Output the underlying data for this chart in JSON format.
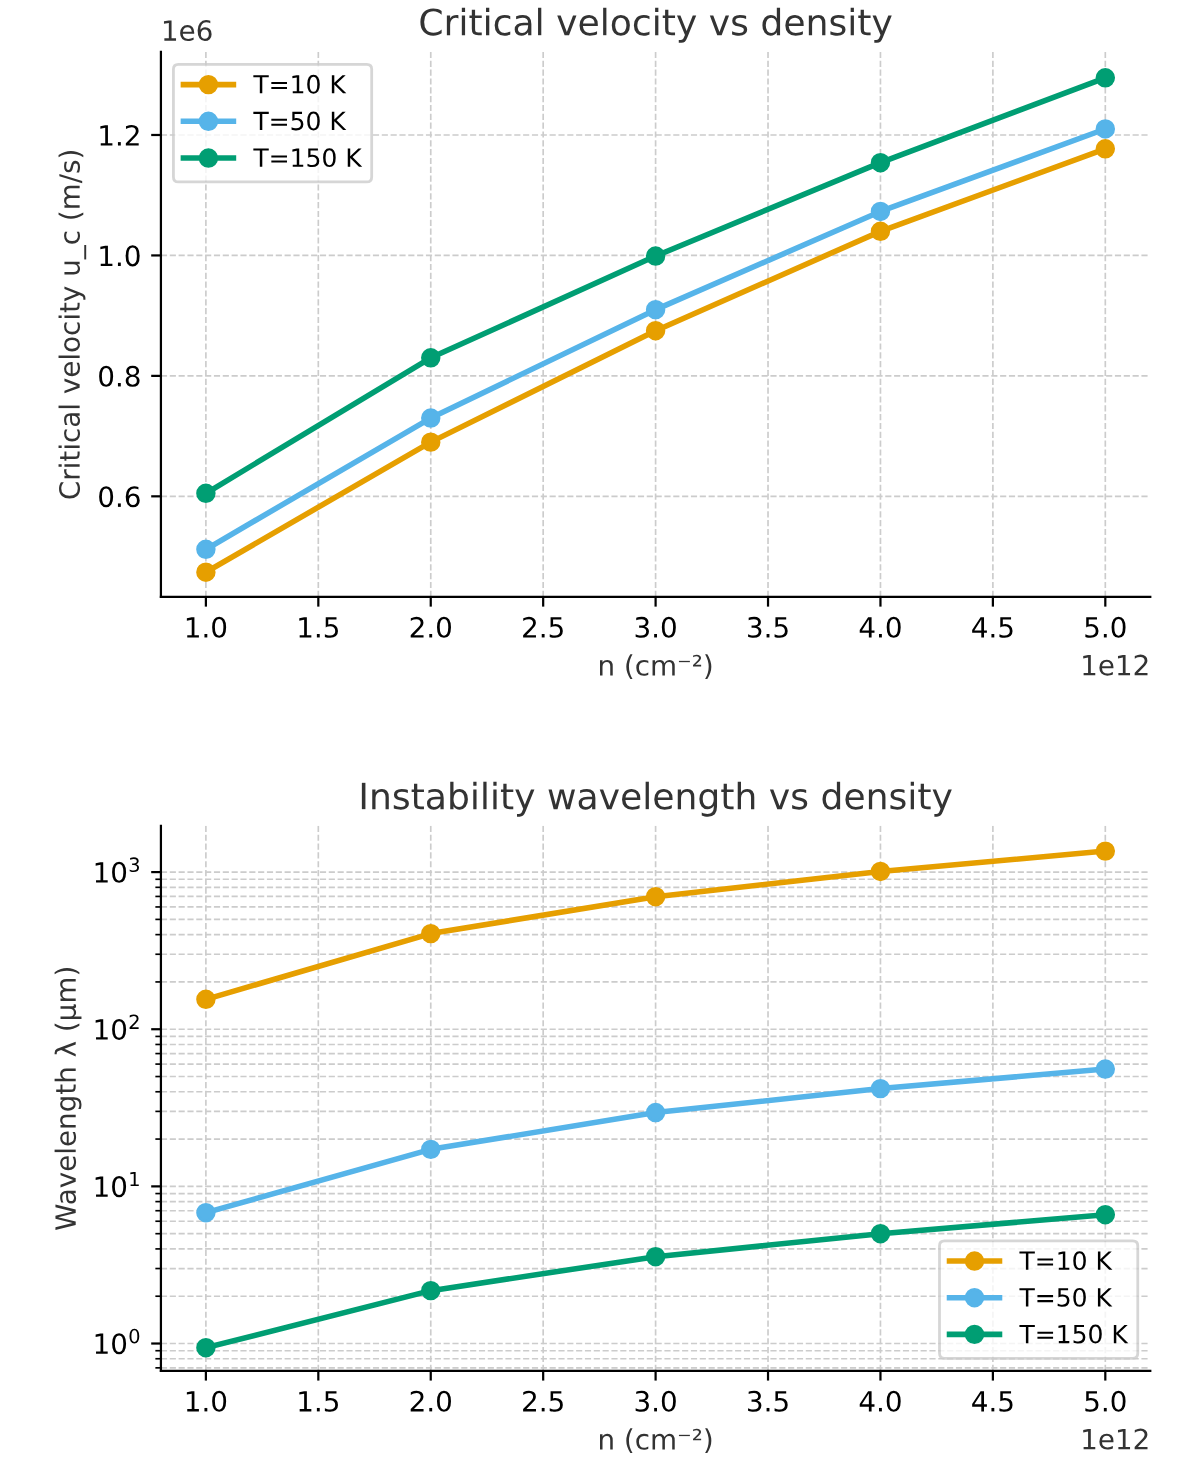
{
  "chart_data": [
    {
      "type": "line",
      "title": "Critical velocity vs density",
      "xlabel": "n (cm⁻²)",
      "ylabel": "Critical velocity u_c (m/s)",
      "x": [
        1.0,
        2.0,
        3.0,
        4.0,
        5.0
      ],
      "series": [
        {
          "name": "T=10 K",
          "color": "#e69f00",
          "values": [
            0.474,
            0.69,
            0.875,
            1.04,
            1.177
          ]
        },
        {
          "name": "T=50 K",
          "color": "#56b4e9",
          "values": [
            0.512,
            0.73,
            0.91,
            1.073,
            1.21
          ]
        },
        {
          "name": "T=150 K",
          "color": "#009e73",
          "values": [
            0.605,
            0.83,
            0.999,
            1.154,
            1.295
          ]
        }
      ],
      "xlim": [
        0.8,
        5.2
      ],
      "ylim": [
        0.433,
        1.338
      ],
      "xticks": [
        {
          "value": 1.0,
          "label": "1.0"
        },
        1.5,
        {
          "value": 2.0,
          "label": "2.0"
        },
        2.5,
        {
          "value": 3.0,
          "label": "3.0"
        },
        3.5,
        {
          "value": 4.0,
          "label": "4.0"
        },
        4.5,
        {
          "value": 5.0,
          "label": "5.0"
        }
      ],
      "yticks": [
        0.6,
        0.8,
        {
          "value": 1.0,
          "label": "1.0"
        },
        1.2
      ],
      "annotations": [
        "1e12",
        "1e6"
      ],
      "grid": true,
      "legend": "top left",
      "marker": "circle",
      "line_style": "solid"
    },
    {
      "type": "line",
      "title": "Instability wavelength vs density",
      "xlabel": "n (cm⁻²)",
      "ylabel": "Wavelength λ (µm)",
      "x": [
        1.0,
        2.0,
        3.0,
        4.0,
        5.0
      ],
      "series": [
        {
          "name": "T=10 K",
          "color": "#e69f00",
          "values": [
            155,
            406,
            697,
            1010,
            1360
          ]
        },
        {
          "name": "T=50 K",
          "color": "#56b4e9",
          "values": [
            6.8,
            17.2,
            29.5,
            41.9,
            55.8
          ]
        },
        {
          "name": "T=150 K",
          "color": "#009e73",
          "values": [
            0.94,
            2.17,
            3.57,
            5.0,
            6.6
          ]
        }
      ],
      "log": "y",
      "xlim": [
        0.8,
        5.2
      ],
      "ylim": [
        0.67,
        1970
      ],
      "xticks": [
        {
          "value": 1.0,
          "label": "1.0"
        },
        1.5,
        {
          "value": 2.0,
          "label": "2.0"
        },
        2.5,
        {
          "value": 3.0,
          "label": "3.0"
        },
        3.5,
        {
          "value": 4.0,
          "label": "4.0"
        },
        4.5,
        {
          "value": 5.0,
          "label": "5.0"
        }
      ],
      "yticks": [
        {
          "value": 1,
          "label": "10$^{0}$"
        },
        {
          "value": 10,
          "label": "10$^{1}$"
        },
        {
          "value": 100,
          "label": "10$^{2}$"
        },
        {
          "value": 1000,
          "label": "10$^{3}$"
        }
      ],
      "annotations": [
        "1e12"
      ],
      "grid": true,
      "legend": "bottom right",
      "marker": "circle",
      "line_style": "solid"
    }
  ]
}
